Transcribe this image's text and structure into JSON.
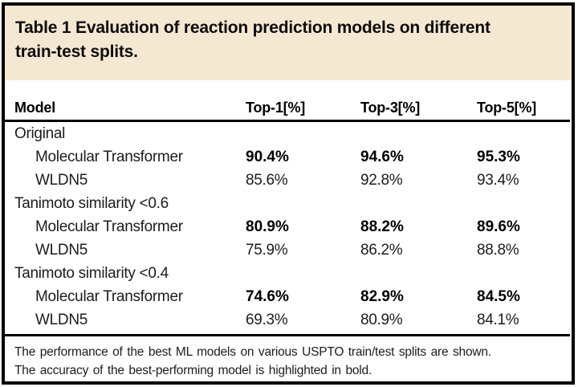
{
  "title": {
    "line1": "Table 1 Evaluation of reaction prediction models on different",
    "line2": "train-test splits."
  },
  "colors": {
    "title_band_bg": "#f5e8d2",
    "frame_border": "#000000",
    "body_text": "#1c1c1c",
    "bold_text": "#000000"
  },
  "table": {
    "columns": [
      "Model",
      "Top-1[%]",
      "Top-3[%]",
      "Top-5[%]"
    ],
    "groups": [
      {
        "label": "Original",
        "rows": [
          {
            "model": "Molecular Transformer",
            "top1": "90.4%",
            "top3": "94.6%",
            "top5": "95.3%",
            "bold": true
          },
          {
            "model": "WLDN5",
            "top1": "85.6%",
            "top3": "92.8%",
            "top5": "93.4%",
            "bold": false
          }
        ]
      },
      {
        "label": "Tanimoto similarity <0.6",
        "rows": [
          {
            "model": "Molecular Transformer",
            "top1": "80.9%",
            "top3": "88.2%",
            "top5": "89.6%",
            "bold": true
          },
          {
            "model": "WLDN5",
            "top1": "75.9%",
            "top3": "86.2%",
            "top5": "88.8%",
            "bold": false
          }
        ]
      },
      {
        "label": "Tanimoto similarity <0.4",
        "rows": [
          {
            "model": "Molecular Transformer",
            "top1": "74.6%",
            "top3": "82.9%",
            "top5": "84.5%",
            "bold": true
          },
          {
            "model": "WLDN5",
            "top1": "69.3%",
            "top3": "80.9%",
            "top5": "84.1%",
            "bold": false
          }
        ]
      }
    ]
  },
  "footnote": {
    "line1": "The performance of the best ML models on various USPTO train/test splits are shown.",
    "line2": "The accuracy of the best-performing model is highlighted in bold."
  }
}
